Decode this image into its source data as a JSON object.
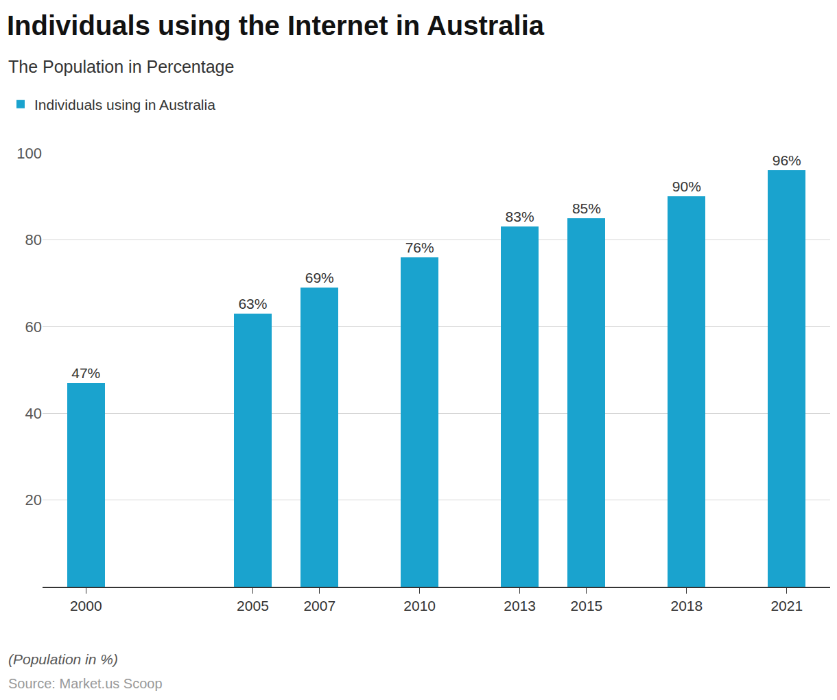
{
  "chart_data": {
    "type": "bar",
    "title": "Individuals using the Internet in Australia",
    "subtitle": "The Population in Percentage",
    "footnote": "(Population in %)",
    "source": "Source: Market.us Scoop",
    "x": [
      2000,
      2005,
      2007,
      2010,
      2013,
      2015,
      2018,
      2021
    ],
    "series": [
      {
        "name": "Individuals using in Australia",
        "color": "#1aa3ce",
        "values": [
          47,
          63,
          69,
          76,
          83,
          85,
          90,
          96
        ],
        "value_labels": [
          "47%",
          "63%",
          "69%",
          "76%",
          "83%",
          "85%",
          "90%",
          "96%"
        ]
      }
    ],
    "xlim": [
      1998.7,
      2022.3
    ],
    "xticks": [
      2000,
      2005,
      2007,
      2010,
      2013,
      2015,
      2018,
      2021
    ],
    "ylim": [
      0,
      100
    ],
    "yticks": [
      20,
      40,
      60,
      80,
      100
    ],
    "grid": true,
    "legend": "top-left",
    "data_labels": true
  }
}
